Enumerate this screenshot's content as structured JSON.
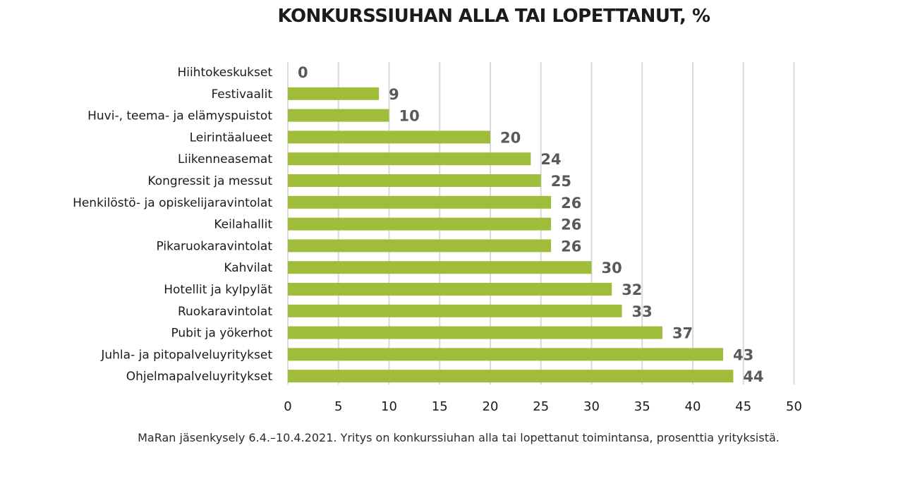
{
  "chart_data": {
    "type": "bar",
    "orientation": "horizontal",
    "title": "KONKURSSIUHAN ALLA TAI LOPETTANUT, %",
    "categories": [
      "Hiihtokeskukset",
      "Festivaalit",
      "Huvi-, teema- ja elämyspuistot",
      "Leirintäalueet",
      "Liikenneasemat",
      "Kongressit ja messut",
      "Henkilöstö- ja opiskelijaravintolat",
      "Keilahallit",
      "Pikaruokaravintolat",
      "Kahvilat",
      "Hotellit ja kylpylät",
      "Ruokaravintolat",
      "Pubit ja yökerhot",
      "Juhla- ja pitopalveluyritykset",
      "Ohjelmapalveluyritykset"
    ],
    "values": [
      0,
      9,
      10,
      20,
      24,
      25,
      26,
      26,
      26,
      30,
      32,
      33,
      37,
      43,
      44
    ],
    "xlim": [
      0,
      50
    ],
    "xticks": [
      0,
      5,
      10,
      15,
      20,
      25,
      30,
      35,
      40,
      45,
      50
    ],
    "grid": "vertical",
    "bar_color": "#9fbd3a",
    "grid_color": "#d9d9d9",
    "value_label_color": "#595959",
    "source": "MaRan jäsenkysely 6.4.–10.4.2021. Yritys on konkurssiuhan alla tai lopettanut toimintansa, prosenttia yrityksistä."
  }
}
